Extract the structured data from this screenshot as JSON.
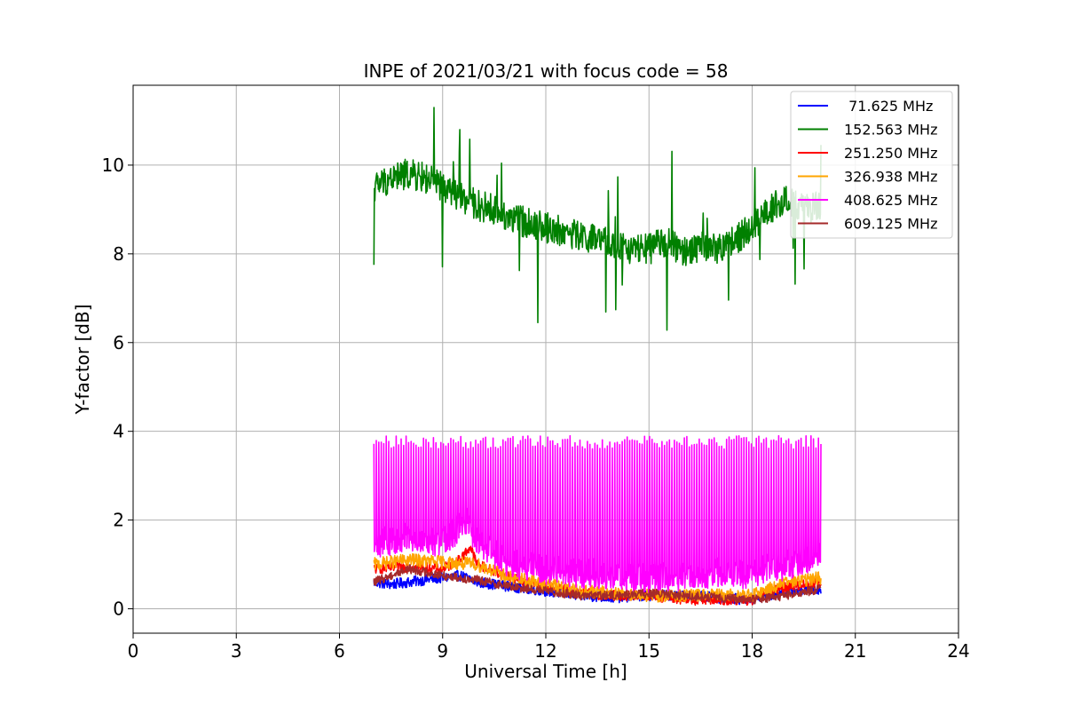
{
  "chart_data": {
    "type": "line",
    "title": "INPE of 2021/03/21 with focus code = 58",
    "xlabel": "Universal Time [h]",
    "ylabel": "Y-factor [dB]",
    "xlim": [
      0,
      24
    ],
    "ylim": [
      -0.55,
      11.8
    ],
    "xticks": [
      "0",
      "3",
      "6",
      "9",
      "12",
      "15",
      "18",
      "21",
      "24"
    ],
    "yticks": [
      "0",
      "2",
      "4",
      "6",
      "8",
      "10"
    ],
    "grid": true,
    "legend_position": "top-right",
    "series": [
      {
        "name": " 71.625 MHz",
        "color": "#0000ff",
        "x": [
          7.0,
          7.5,
          8.0,
          8.5,
          9.0,
          9.5,
          10.0,
          11.0,
          12.0,
          13.0,
          14.0,
          15.0,
          16.0,
          17.0,
          18.0,
          19.0,
          20.0
        ],
        "y": [
          0.6,
          0.55,
          0.6,
          0.65,
          0.7,
          0.75,
          0.6,
          0.5,
          0.4,
          0.3,
          0.25,
          0.3,
          0.3,
          0.25,
          0.2,
          0.4,
          0.45
        ]
      },
      {
        "name": "152.563 MHz",
        "color": "#008000",
        "x": [
          7.0,
          7.5,
          8.0,
          8.5,
          9.0,
          9.5,
          10.0,
          10.5,
          11.0,
          11.5,
          12.0,
          12.5,
          13.0,
          13.5,
          14.0,
          14.5,
          15.0,
          15.5,
          16.0,
          16.5,
          17.0,
          17.5,
          18.0,
          18.5,
          19.0,
          19.5,
          20.0
        ],
        "y": [
          9.5,
          9.7,
          9.8,
          9.7,
          9.5,
          9.3,
          9.1,
          9.0,
          8.8,
          8.7,
          8.6,
          8.5,
          8.4,
          8.3,
          8.2,
          8.1,
          8.1,
          8.3,
          8.0,
          8.2,
          8.1,
          8.3,
          8.6,
          9.0,
          9.2,
          9.0,
          9.1
        ]
      },
      {
        "name": "251.250 MHz",
        "color": "#ff0000",
        "x": [
          7.0,
          8.0,
          9.0,
          9.5,
          9.8,
          10.0,
          11.0,
          12.0,
          13.0,
          14.0,
          15.0,
          16.0,
          17.0,
          18.0,
          19.0,
          20.0
        ],
        "y": [
          0.9,
          0.95,
          0.9,
          1.1,
          1.4,
          1.0,
          0.7,
          0.5,
          0.35,
          0.3,
          0.3,
          0.2,
          0.2,
          0.2,
          0.5,
          0.6
        ]
      },
      {
        "name": "326.938 MHz",
        "color": "#ffa500",
        "x": [
          7.0,
          8.0,
          9.0,
          10.0,
          11.0,
          12.0,
          13.0,
          14.0,
          15.0,
          16.0,
          17.0,
          18.0,
          19.0,
          20.0
        ],
        "y": [
          1.0,
          1.1,
          1.05,
          1.0,
          0.7,
          0.55,
          0.4,
          0.35,
          0.3,
          0.3,
          0.3,
          0.3,
          0.6,
          0.7
        ]
      },
      {
        "name": "408.625 MHz",
        "color": "#ff00ff",
        "x": [
          7.0,
          8.0,
          9.0,
          9.7,
          10.0,
          11.0,
          12.0,
          13.0,
          14.0,
          15.0,
          16.0,
          17.0,
          18.0,
          19.0,
          20.0
        ],
        "y": [
          1.5,
          1.6,
          1.5,
          2.0,
          1.5,
          1.0,
          0.9,
          0.8,
          0.75,
          0.7,
          0.75,
          0.8,
          0.8,
          1.0,
          1.2
        ]
      },
      {
        "name": "609.125 MHz",
        "color": "#a52a2a",
        "x": [
          7.0,
          8.0,
          9.0,
          10.0,
          11.0,
          12.0,
          13.0,
          14.0,
          15.0,
          16.0,
          17.0,
          18.0,
          19.0,
          20.0
        ],
        "y": [
          0.6,
          0.9,
          0.75,
          0.65,
          0.5,
          0.4,
          0.3,
          0.3,
          0.35,
          0.3,
          0.25,
          0.2,
          0.3,
          0.45
        ]
      }
    ]
  }
}
